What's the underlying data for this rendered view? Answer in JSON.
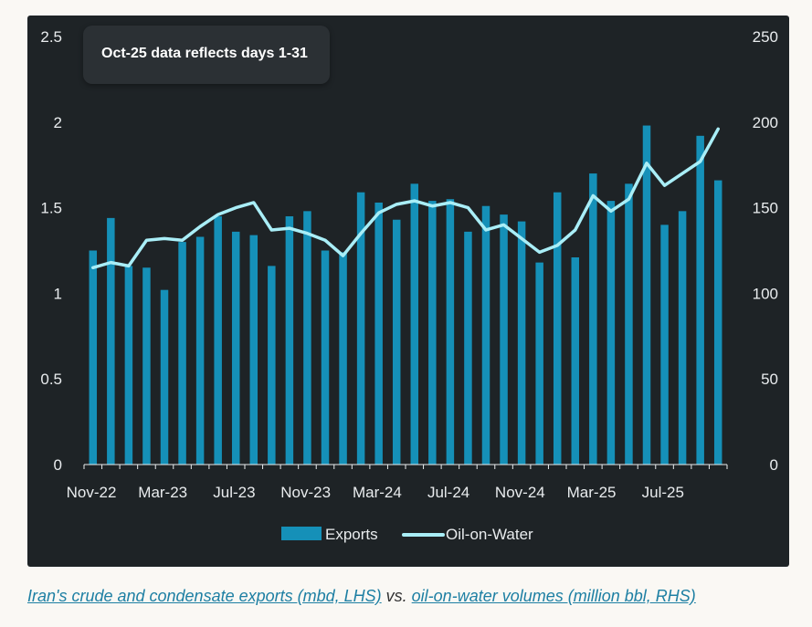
{
  "chart_data": {
    "type": "bar+line",
    "annotation": "Oct-25 data reflects days 1-31",
    "x_tick_labels": [
      "Nov-22",
      "Mar-23",
      "Jul-23",
      "Nov-23",
      "Mar-24",
      "Jul-24",
      "Nov-24",
      "Mar-25",
      "Jul-25"
    ],
    "months": [
      "Nov-22",
      "Dec-22",
      "Jan-23",
      "Feb-23",
      "Mar-23",
      "Apr-23",
      "May-23",
      "Jun-23",
      "Jul-23",
      "Aug-23",
      "Sep-23",
      "Oct-23",
      "Nov-23",
      "Dec-23",
      "Jan-24",
      "Feb-24",
      "Mar-24",
      "Apr-24",
      "May-24",
      "Jun-24",
      "Jul-24",
      "Aug-24",
      "Sep-24",
      "Oct-24",
      "Nov-24",
      "Dec-24",
      "Jan-25",
      "Feb-25",
      "Mar-25",
      "Apr-25",
      "May-25",
      "Jun-25",
      "Jul-25",
      "Aug-25",
      "Sep-25",
      "Oct-25"
    ],
    "y_left": {
      "min": 0,
      "max": 2.5,
      "ticks": [
        "0",
        "0.5",
        "1",
        "1.5",
        "2",
        "2.5"
      ]
    },
    "y_right": {
      "min": 0,
      "max": 250,
      "ticks": [
        "0",
        "50",
        "100",
        "150",
        "200",
        "250"
      ]
    },
    "series": [
      {
        "name": "Exports",
        "type": "bar",
        "axis": "left",
        "color": "#1590b8",
        "values": [
          1.25,
          1.44,
          1.16,
          1.15,
          1.02,
          1.3,
          1.33,
          1.45,
          1.36,
          1.34,
          1.16,
          1.45,
          1.48,
          1.25,
          1.24,
          1.59,
          1.53,
          1.43,
          1.64,
          1.54,
          1.55,
          1.36,
          1.51,
          1.46,
          1.42,
          1.18,
          1.59,
          1.21,
          1.7,
          1.54,
          1.64,
          1.98,
          1.4,
          1.48,
          1.92,
          1.66
        ]
      },
      {
        "name": "Oil-on-Water",
        "type": "line",
        "axis": "right",
        "color": "#a9eef7",
        "values": [
          115,
          118,
          116,
          131,
          132,
          131,
          139,
          146,
          150,
          153,
          137,
          138,
          135,
          131,
          122,
          135,
          147,
          152,
          154,
          151,
          153,
          150,
          137,
          140,
          132,
          124,
          128,
          137,
          157,
          148,
          155,
          176,
          163,
          170,
          177,
          196
        ]
      }
    ],
    "legend_position": "bottom-center"
  },
  "caption": {
    "link1": "Iran's crude and condensate exports (mbd, LHS)",
    "middle": " vs. ",
    "link2": "oil-on-water volumes (million bbl, RHS)"
  }
}
